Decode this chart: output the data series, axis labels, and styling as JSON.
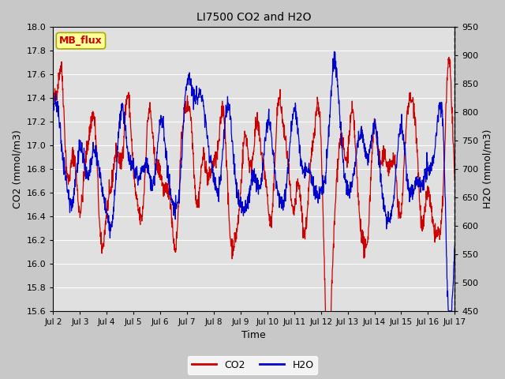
{
  "title": "LI7500 CO2 and H2O",
  "xlabel": "Time",
  "ylabel_left": "CO2 (mmol/m3)",
  "ylabel_right": "H2O (mmol/m3)",
  "watermark": "MB_flux",
  "co2_ylim": [
    15.6,
    18.0
  ],
  "h2o_ylim": [
    450,
    950
  ],
  "co2_color": "#cc0000",
  "h2o_color": "#0000cc",
  "fig_facecolor": "#c8c8c8",
  "plot_facecolor": "#e0e0e0",
  "legend_co2": "CO2",
  "legend_h2o": "H2O",
  "x_tick_labels": [
    "Jul 2",
    "Jul 3",
    "Jul 4",
    "Jul 5",
    "Jul 6",
    "Jul 7",
    "Jul 8",
    "Jul 9",
    "Jul 10",
    "Jul 11",
    "Jul 12",
    "Jul 13",
    "Jul 14",
    "Jul 15",
    "Jul 16",
    "Jul 17"
  ],
  "n_points": 1500,
  "co2_yticks": [
    15.6,
    15.8,
    16.0,
    16.2,
    16.4,
    16.6,
    16.8,
    17.0,
    17.2,
    17.4,
    17.6,
    17.8,
    18.0
  ],
  "h2o_yticks": [
    450,
    500,
    550,
    600,
    650,
    700,
    750,
    800,
    850,
    900,
    950
  ]
}
